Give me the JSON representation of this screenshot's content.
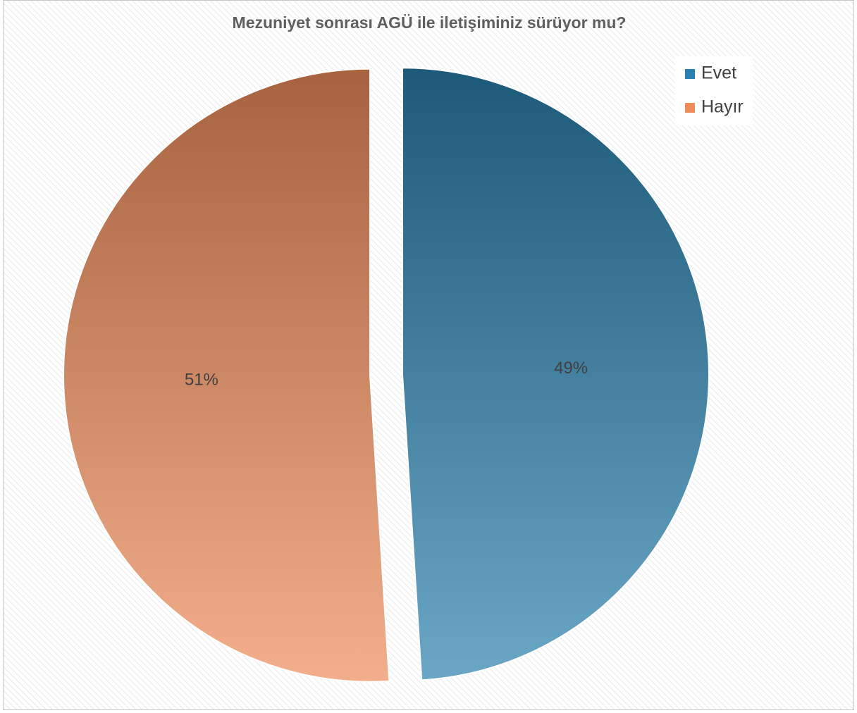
{
  "chart_data": {
    "type": "pie",
    "title": "Mezuniyet sonrası AGÜ ile iletişiminiz sürüyor mu?",
    "categories": [
      "Evet",
      "Hayır"
    ],
    "values": [
      49,
      51
    ],
    "value_labels": [
      "49%",
      "51%"
    ],
    "colors": [
      "#2a80ae",
      "#ee8d5a"
    ],
    "legend": "top-right"
  }
}
